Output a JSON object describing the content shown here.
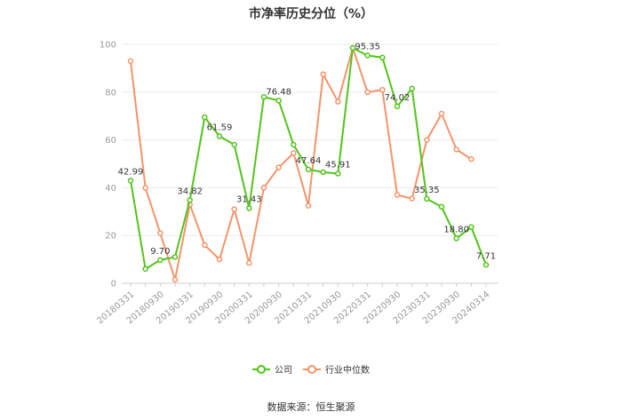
{
  "chart_data": {
    "type": "line",
    "title": "市净率历史分位（%）",
    "xlabel": "",
    "ylabel": "",
    "ylim": [
      0,
      100
    ],
    "yticks": [
      0,
      20,
      40,
      60,
      80,
      100
    ],
    "grid": true,
    "legend_position": "bottom",
    "categories": [
      "20180331",
      "20180630",
      "20180930",
      "20181231",
      "20190331",
      "20190630",
      "20190930",
      "20191231",
      "20200331",
      "20200630",
      "20200930",
      "20201231",
      "20210331",
      "20210630",
      "20210930",
      "20211231",
      "20220331",
      "20220630",
      "20220930",
      "20221231",
      "20230331",
      "20230630",
      "20230930",
      "20231231",
      "20240314"
    ],
    "x_tick_labels": [
      "20180331",
      "20180930",
      "20190331",
      "20190930",
      "20200331",
      "20200930",
      "20210331",
      "20210930",
      "20220331",
      "20220930",
      "20230331",
      "20230930",
      "20240314"
    ],
    "series": [
      {
        "name": "公司",
        "color": "#52c41a",
        "values": [
          42.99,
          6,
          9.7,
          11,
          34.82,
          69.5,
          61.59,
          58,
          31.43,
          78,
          76.48,
          58,
          47.64,
          46.5,
          45.91,
          98.5,
          95.35,
          94.5,
          74.02,
          81.5,
          35.35,
          32,
          18.8,
          23.5,
          7.71
        ],
        "data_labels": {
          "0": "42.99",
          "2": "9.70",
          "4": "34.82",
          "6": "61.59",
          "8": "31.43",
          "10": "76.48",
          "12": "47.64",
          "14": "45.91",
          "16": "95.35",
          "18": "74.02",
          "20": "35.35",
          "22": "18.80",
          "24": "7.71"
        }
      },
      {
        "name": "行业中位数",
        "color": "#f4946a",
        "values": [
          93,
          40,
          21,
          1.5,
          33,
          16,
          10,
          31,
          8.5,
          40,
          48.5,
          54.5,
          32.5,
          87.5,
          76,
          98.5,
          80,
          81,
          37,
          35.5,
          60,
          71,
          56,
          52,
          null
        ]
      }
    ]
  },
  "source": "数据来源：恒生聚源"
}
